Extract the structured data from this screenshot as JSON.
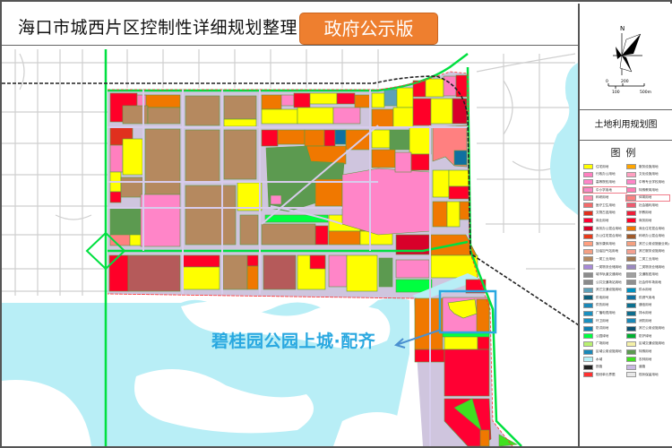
{
  "header": {
    "title": "海口市城西片区控制性详细规划整理",
    "badge": "政府公示版"
  },
  "compass": {
    "north_label": "N",
    "scale_labels": [
      "0",
      "100",
      "200",
      "500m"
    ]
  },
  "map_title": "土地利用规划图",
  "legend": {
    "heading": "图例",
    "items": [
      [
        "住宅用地",
        "#ffff00"
      ],
      [
        "服务设施用地",
        "#ffa500"
      ],
      [
        "行政办公用地",
        "#ff7fbf"
      ],
      [
        "文化设施用地",
        "#ff9fc0"
      ],
      [
        "高等院校用地",
        "#ff85c8"
      ],
      [
        "中等专业学校用地",
        "#ff85c8"
      ],
      [
        "中小学用地",
        "#ff85c8"
      ],
      [
        "特殊教育用地",
        "#ff7fb5"
      ],
      [
        "科研用地",
        "#ff8fb0"
      ],
      [
        "体育用地",
        "#ff8080"
      ],
      [
        "医疗卫生用地",
        "#f36a6a"
      ],
      [
        "社会福利用地",
        "#ee5a6f"
      ],
      [
        "文物古迹用地",
        "#e0301e"
      ],
      [
        "宗教用地",
        "#ee1f3a"
      ],
      [
        "商业用地",
        "#ff0033"
      ],
      [
        "商务用地",
        "#ff0028"
      ],
      [
        "商务办公混合用地",
        "#d8002a"
      ],
      [
        "商业住宅混合用地",
        "#f07800"
      ],
      [
        "办公住宅混合用地",
        "#e83a1a"
      ],
      [
        "科研办公混合用地",
        "#a05a2a"
      ],
      [
        "娱乐康体用地",
        "#ff9f7f"
      ],
      [
        "其它公用设施营业网点用地",
        "#f4a080"
      ],
      [
        "加油加气站用地",
        "#f4a084"
      ],
      [
        "其它服务设施用地",
        "#f4a090"
      ],
      [
        "一类工业用地",
        "#b5895f"
      ],
      [
        "二类工业用地",
        "#a07850"
      ],
      [
        "一类物流仓储用地",
        "#a88ad8"
      ],
      [
        "二类物流仓储用地",
        "#9b8abf"
      ],
      [
        "城市轨道交通用地",
        "#8c8c8c"
      ],
      [
        "交通枢纽用地",
        "#a0a0a0"
      ],
      [
        "公共交通场站用地",
        "#8a8a8a"
      ],
      [
        "社会停车场用地",
        "#8f8f8f"
      ],
      [
        "其它交通设施用地",
        "#5ea0b8"
      ],
      [
        "供水用地",
        "#0090c0"
      ],
      [
        "供电用地",
        "#0d5f7a"
      ],
      [
        "供燃气用地",
        "#1070a0"
      ],
      [
        "供热用地",
        "#1a88b8"
      ],
      [
        "通信用地",
        "#0a7090"
      ],
      [
        "广播电视用地",
        "#1a8fbf"
      ],
      [
        "排水用地",
        "#0e6c8c"
      ],
      [
        "环卫用地",
        "#1a90c0"
      ],
      [
        "消防用地",
        "#1a88b8"
      ],
      [
        "防洪用地",
        "#1080b0"
      ],
      [
        "其它公用设施用地",
        "#0d5070"
      ],
      [
        "公园绿地",
        "#00ff40"
      ],
      [
        "防护绿地",
        "#00b030"
      ],
      [
        "广场用地",
        "#b8f070"
      ],
      [
        "区域交通设施用地",
        "#f4f0a8"
      ],
      [
        "区域公用设施用地",
        "#1a88b8"
      ],
      [
        "特殊用地",
        "#5c9a50"
      ],
      [
        "水域",
        "#b8f0f8"
      ],
      [
        "农林用地",
        "#40e020"
      ],
      [
        "铁路",
        "#222222"
      ],
      [
        "道路",
        "#c8b8e0"
      ],
      [
        "规划单元界限",
        "#ff3030"
      ],
      [
        "现状保留用地",
        "#e8e8e8"
      ]
    ],
    "highlighted": [
      "中小学用地",
      "体育用地"
    ]
  },
  "callout": {
    "label": "碧桂园公园上城·配齐",
    "color": "#29a8e0"
  },
  "colors": {
    "residential": "#ffff00",
    "commercial": "#ff0033",
    "mixed": "#f07800",
    "education": "#ff85c8",
    "industry_brown": "#b5895f",
    "park": "#5c9a50",
    "green": "#00ff40",
    "water": "#b8eef6",
    "highlight_box": "#29a8e0"
  }
}
